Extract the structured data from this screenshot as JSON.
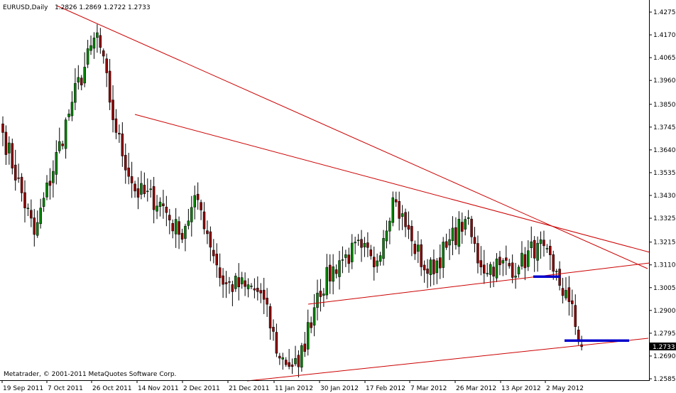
{
  "chart_data": {
    "type": "candlestick",
    "title": "EURUSD,Daily",
    "ohlc_readout": "1.2826 1.2869 1.2722 1.2733",
    "footer": "Metatrader, © 2001-2011 MetaQuotes Software Corp.",
    "current_price": "1.2733",
    "yticks": [
      "1.4275",
      "1.4170",
      "1.4065",
      "1.3960",
      "1.3850",
      "1.3745",
      "1.3640",
      "1.3535",
      "1.3430",
      "1.3325",
      "1.3215",
      "1.3110",
      "1.3005",
      "1.2900",
      "1.2795",
      "1.2690",
      "1.2585"
    ],
    "ylim": [
      1.2585,
      1.4275
    ],
    "xticks": [
      "19 Sep 2011",
      "7 Oct 2011",
      "26 Oct 2011",
      "14 Nov 2011",
      "2 Dec 2011",
      "21 Dec 2011",
      "11 Jan 2012",
      "30 Jan 2012",
      "17 Feb 2012",
      "7 Mar 2012",
      "26 Mar 2012",
      "13 Apr 2012",
      "2 May 2012"
    ],
    "grid": false,
    "colors": {
      "bull": "#008000",
      "bear": "#8b0000",
      "trendline": "#cc0000",
      "support_mark": "#0000cc",
      "background": "#ffffff"
    },
    "key_points": [
      {
        "index": 0,
        "close": 1.372
      },
      {
        "index": 10,
        "close": 1.325
      },
      {
        "index": 22,
        "close": 1.386
      },
      {
        "index": 30,
        "close": 1.418
      },
      {
        "index": 36,
        "close": 1.372
      },
      {
        "index": 42,
        "close": 1.345
      },
      {
        "index": 50,
        "close": 1.34
      },
      {
        "index": 56,
        "close": 1.325
      },
      {
        "index": 62,
        "close": 1.341
      },
      {
        "index": 70,
        "close": 1.302
      },
      {
        "index": 77,
        "close": 1.301
      },
      {
        "index": 82,
        "close": 1.298
      },
      {
        "index": 88,
        "close": 1.268
      },
      {
        "index": 94,
        "close": 1.264
      },
      {
        "index": 100,
        "close": 1.298
      },
      {
        "index": 107,
        "close": 1.313
      },
      {
        "index": 114,
        "close": 1.319
      },
      {
        "index": 118,
        "close": 1.31
      },
      {
        "index": 124,
        "close": 1.342
      },
      {
        "index": 130,
        "close": 1.322
      },
      {
        "index": 135,
        "close": 1.307
      },
      {
        "index": 141,
        "close": 1.319
      },
      {
        "index": 147,
        "close": 1.332
      },
      {
        "index": 152,
        "close": 1.31
      },
      {
        "index": 158,
        "close": 1.311
      },
      {
        "index": 164,
        "close": 1.31
      },
      {
        "index": 170,
        "close": 1.321
      },
      {
        "index": 175,
        "close": 1.308
      },
      {
        "index": 180,
        "close": 1.294
      },
      {
        "index": 184,
        "close": 1.2733
      }
    ],
    "trendlines": [
      {
        "from": {
          "date": "19 Sep 2011",
          "price": 1.43
        },
        "to": {
          "date": "after 2 May 2012",
          "price": 1.311
        }
      },
      {
        "from": {
          "date": "7 Nov 2011",
          "price": 1.3805
        },
        "to": {
          "date": "after 2 May 2012",
          "price": 1.316
        }
      },
      {
        "from": {
          "date": "19 Jan 2012",
          "price": 1.294
        },
        "to": {
          "date": "after 2 May 2012",
          "price": 1.312
        }
      },
      {
        "from": {
          "date": "21 Dec 2011",
          "price": 1.259
        },
        "to": {
          "date": "after 2 May 2012",
          "price": 1.277
        }
      }
    ],
    "support_marks": [
      {
        "date_from": "24 Apr 2012",
        "date_to": "30 Apr 2012",
        "price": 1.3065
      },
      {
        "date_from": "3 May 2012",
        "date_to": "14 May 2012",
        "price": 1.2752
      }
    ]
  }
}
